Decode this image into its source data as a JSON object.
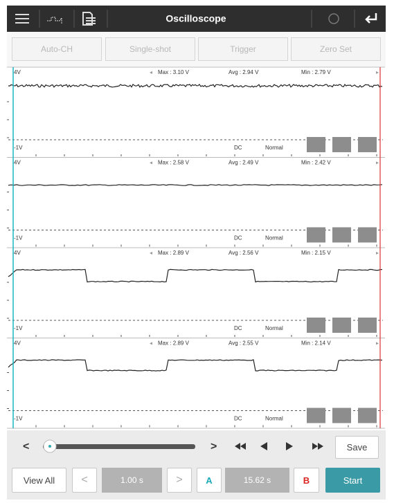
{
  "toolbar": {
    "title": "Oscilloscope"
  },
  "buttons": [
    "Auto-CH",
    "Single-shot",
    "Trigger",
    "Zero Set"
  ],
  "channels": [
    {
      "top": "4V",
      "max": "Max : 3.10 V",
      "avg": "Avg : 2.94 V",
      "min": "Min : 2.79 V",
      "bottom": "-1V",
      "coupling": "DC",
      "mode": "Normal"
    },
    {
      "top": "4V",
      "max": "Max : 2.58 V",
      "avg": "Avg : 2.49 V",
      "min": "Min : 2.42 V",
      "bottom": "-1V",
      "coupling": "DC",
      "mode": "Normal"
    },
    {
      "top": "4V",
      "max": "Max : 2.89 V",
      "avg": "Avg : 2.56 V",
      "min": "Min : 2.15 V",
      "bottom": "-1V",
      "coupling": "DC",
      "mode": "Normal"
    },
    {
      "top": "4V",
      "max": "Max : 2.89 V",
      "avg": "Avg : 2.55 V",
      "min": "Min : 2.14 V",
      "bottom": "-1V",
      "coupling": "DC",
      "mode": "Normal"
    }
  ],
  "playback": {
    "prev": "<",
    "next": ">",
    "save": "Save"
  },
  "footer": {
    "view_all": "View All",
    "prev": "<",
    "step": "1.00 s",
    "next": ">",
    "cursor_a": "A",
    "time": "15.62 s",
    "cursor_b": "B",
    "start": "Start"
  }
}
